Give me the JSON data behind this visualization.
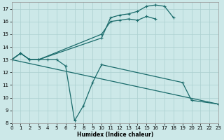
{
  "xlabel": "Humidex (Indice chaleur)",
  "bg_color": "#cce8e8",
  "grid_color": "#aacfcf",
  "line_color": "#1a6b6b",
  "xlim": [
    0,
    23
  ],
  "ylim": [
    8,
    17.5
  ],
  "yticks": [
    8,
    9,
    10,
    11,
    12,
    13,
    14,
    15,
    16,
    17
  ],
  "xticks": [
    0,
    1,
    2,
    3,
    4,
    5,
    6,
    7,
    8,
    9,
    10,
    11,
    12,
    13,
    14,
    15,
    16,
    17,
    18,
    19,
    20,
    21,
    22,
    23
  ],
  "series": [
    {
      "x": [
        0,
        23
      ],
      "y": [
        13.0,
        9.5
      ]
    },
    {
      "x": [
        0,
        1,
        2,
        3,
        4,
        5,
        6,
        7,
        8,
        9,
        10,
        19,
        20,
        23
      ],
      "y": [
        13.0,
        13.5,
        13.0,
        13.0,
        13.0,
        13.0,
        12.5,
        8.2,
        9.4,
        11.2,
        12.6,
        11.2,
        9.8,
        9.5
      ]
    },
    {
      "x": [
        0,
        1,
        2,
        3,
        10,
        11,
        12,
        13,
        14,
        15,
        16,
        17,
        18
      ],
      "y": [
        13.0,
        13.5,
        13.0,
        13.0,
        14.7,
        16.3,
        16.5,
        16.6,
        16.8,
        17.2,
        17.3,
        17.2,
        16.3
      ]
    },
    {
      "x": [
        0,
        1,
        2,
        3,
        10,
        11,
        12,
        13,
        14,
        15,
        16
      ],
      "y": [
        13.0,
        13.5,
        13.0,
        13.0,
        15.0,
        16.0,
        16.1,
        16.2,
        16.1,
        16.4,
        16.2
      ]
    }
  ]
}
